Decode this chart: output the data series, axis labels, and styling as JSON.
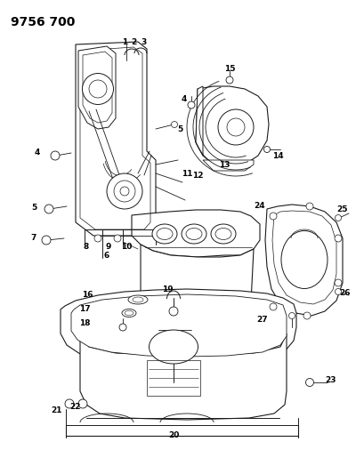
{
  "title": "9756 700",
  "bg_color": "#ffffff",
  "line_color": "#1a1a1a",
  "label_color": "#000000",
  "title_fontsize": 10,
  "label_fontsize": 6.5
}
